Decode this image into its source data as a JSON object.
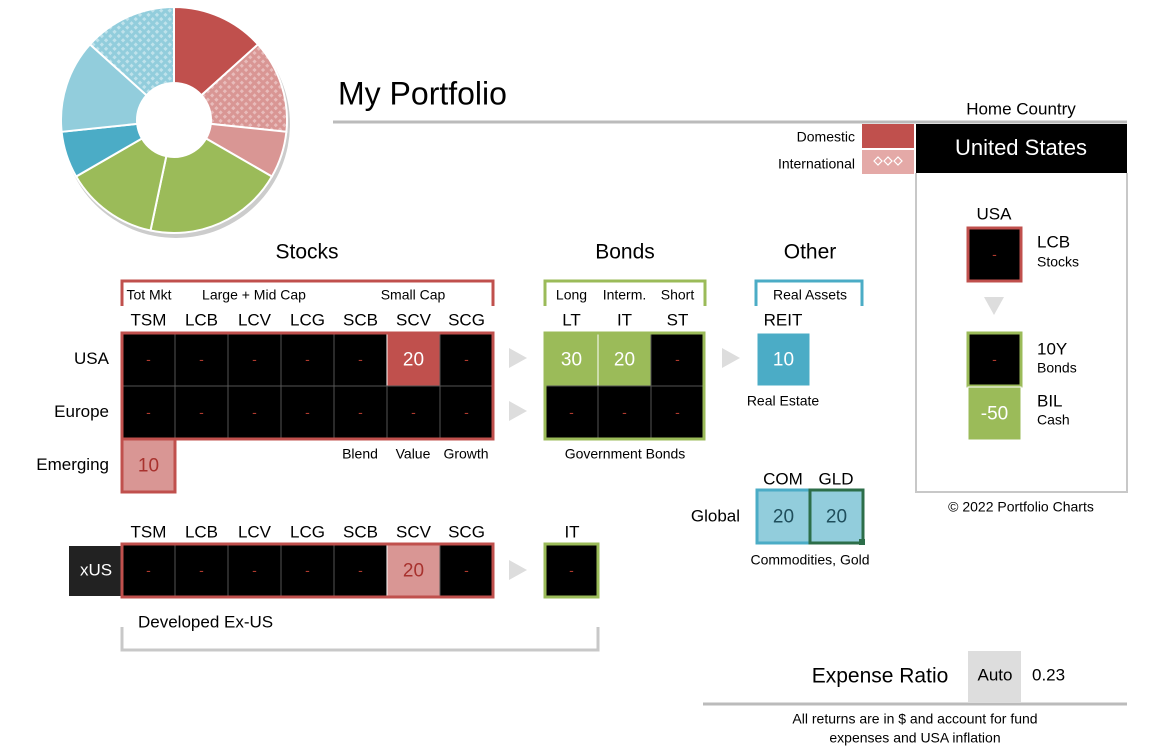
{
  "header": {
    "title": "My Portfolio"
  },
  "legend": {
    "domestic": "Domestic",
    "international": "International"
  },
  "home_country": {
    "label": "Home Country",
    "value": "United States"
  },
  "sidebar": {
    "region": "USA",
    "stock_cell": "-",
    "stock_ticker": "LCB",
    "stock_label": "Stocks",
    "bond_cell": "-",
    "bond_ticker": "10Y",
    "bond_label": "Bonds",
    "cash_cell": -50,
    "cash_ticker": "BIL",
    "cash_label": "Cash"
  },
  "copyright": "© 2022 Portfolio Charts",
  "stocks": {
    "heading": "Stocks",
    "groups": [
      "Tot Mkt",
      "Large + Mid Cap",
      "Small Cap"
    ],
    "columns": [
      "TSM",
      "LCB",
      "LCV",
      "LCG",
      "SCB",
      "SCV",
      "SCG"
    ],
    "rows": [
      {
        "label": "USA",
        "cells": [
          "-",
          "-",
          "-",
          "-",
          "-",
          20,
          "-"
        ]
      },
      {
        "label": "Europe",
        "cells": [
          "-",
          "-",
          "-",
          "-",
          "-",
          "-",
          "-"
        ]
      },
      {
        "label": "Emerging",
        "cells": [
          10
        ]
      }
    ],
    "styles": [
      "Blend",
      "Value",
      "Growth"
    ]
  },
  "bonds": {
    "heading": "Bonds",
    "groups": [
      "Long",
      "Interm.",
      "Short"
    ],
    "columns": [
      "LT",
      "IT",
      "ST"
    ],
    "rows": [
      {
        "cells": [
          30,
          20,
          "-"
        ]
      },
      {
        "cells": [
          "-",
          "-",
          "-"
        ]
      }
    ],
    "note": "Government Bonds"
  },
  "other": {
    "heading": "Other",
    "group": "Real Assets",
    "column": "REIT",
    "cell": 10,
    "note": "Real Estate",
    "global_label": "Global",
    "global_columns": [
      "COM",
      "GLD"
    ],
    "global_cells": [
      20,
      20
    ],
    "global_note": "Commodities, Gold"
  },
  "xus": {
    "label": "xUS",
    "columns": [
      "TSM",
      "LCB",
      "LCV",
      "LCG",
      "SCB",
      "SCV",
      "SCG"
    ],
    "cells": [
      "-",
      "-",
      "-",
      "-",
      "-",
      20,
      "-"
    ],
    "bond_column": "IT",
    "bond_cell": "-",
    "note": "Developed Ex-US"
  },
  "expense": {
    "label": "Expense Ratio",
    "mode": "Auto",
    "value": 0.23
  },
  "footer": {
    "lines": [
      "All returns are in $ and account for fund",
      "expenses and USA inflation"
    ]
  }
}
